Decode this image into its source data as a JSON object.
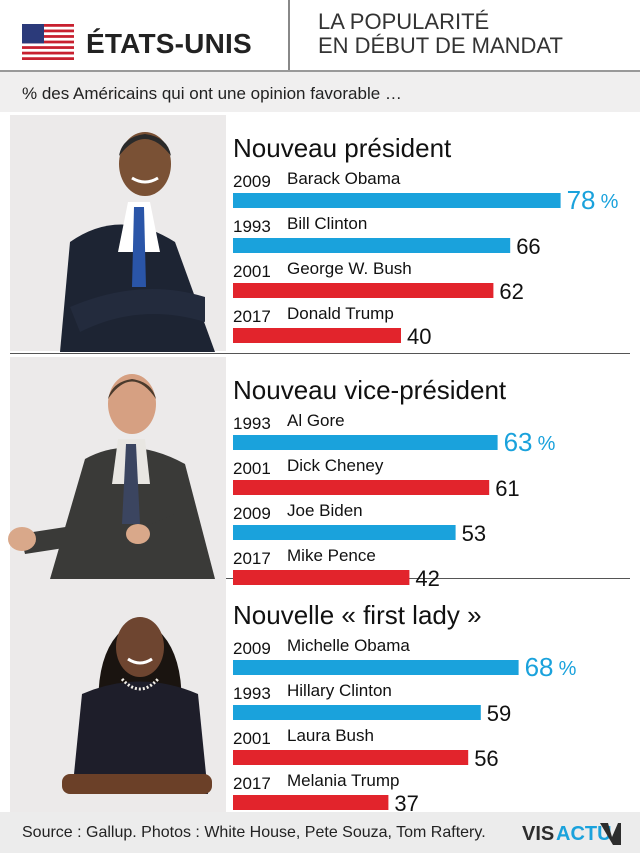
{
  "header": {
    "country": "ÉTATS-UNIS",
    "subtitle_line1": "LA POPULARITÉ",
    "subtitle_line2": "EN DÉBUT DE MANDAT"
  },
  "intro": "% des Américains qui ont une opinion favorable …",
  "source": "Source : Gallup. Photos : White House, Pete Souza, Tom Raftery.",
  "logo": {
    "text_left": "VIS",
    "text_right": "ACTU"
  },
  "colors": {
    "blue": "#1aa2dc",
    "red": "#e2242c",
    "highlight_text": "#1aa2dc",
    "text": "#111111"
  },
  "icons": {
    "flag": "us-flag-icon",
    "photos": [
      "president-photo",
      "vice-president-photo",
      "first-lady-photo"
    ]
  },
  "chart_data": [
    {
      "type": "bar",
      "title": "Nouveau président",
      "categories": [
        "Barack Obama",
        "Bill Clinton",
        "George W. Bush",
        "Donald Trump"
      ],
      "years": [
        "2009",
        "1993",
        "2001",
        "2017"
      ],
      "values": [
        78,
        66,
        62,
        40
      ],
      "value_labels": [
        "78",
        "66",
        "62",
        "40"
      ],
      "colors": [
        "blue",
        "blue",
        "red",
        "red"
      ],
      "highlight": 0,
      "unit": "%"
    },
    {
      "type": "bar",
      "title": "Nouveau vice-président",
      "categories": [
        "Al Gore",
        "Dick Cheney",
        "Joe Biden",
        "Mike Pence"
      ],
      "years": [
        "1993",
        "2001",
        "2009",
        "2017"
      ],
      "values": [
        63,
        61,
        53,
        42
      ],
      "value_labels": [
        "63",
        "61",
        "53",
        "42"
      ],
      "colors": [
        "blue",
        "red",
        "blue",
        "red"
      ],
      "highlight": 0,
      "unit": "%"
    },
    {
      "type": "bar",
      "title": "Nouvelle « first lady »",
      "categories": [
        "Michelle Obama",
        "Hillary Clinton",
        "Laura Bush",
        "Melania Trump"
      ],
      "years": [
        "2009",
        "1993",
        "2001",
        "2017"
      ],
      "values": [
        68,
        59,
        56,
        37
      ],
      "value_labels": [
        "68",
        "59",
        "56",
        "37"
      ],
      "colors": [
        "blue",
        "blue",
        "red",
        "red"
      ],
      "highlight": 0,
      "unit": "%"
    }
  ]
}
